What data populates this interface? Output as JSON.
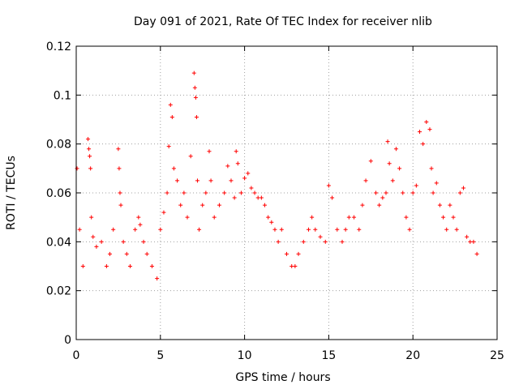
{
  "chart_data": {
    "type": "scatter",
    "title": "Day 091 of 2021, Rate Of TEC Index for receiver nlib",
    "xlabel": "GPS time / hours",
    "ylabel": "ROTI / TECUs",
    "xlim": [
      0,
      25
    ],
    "ylim": [
      0,
      0.12
    ],
    "x_ticks": [
      0,
      5,
      10,
      15,
      20,
      25
    ],
    "x_tick_labels": [
      "0",
      "5",
      "10",
      "15",
      "20",
      "25"
    ],
    "y_ticks": [
      0,
      0.02,
      0.04,
      0.06,
      0.08,
      0.1,
      0.12
    ],
    "y_tick_labels": [
      "0",
      "0.02",
      "0.04",
      "0.06",
      "0.08",
      "0.1",
      "0.12"
    ],
    "grid": true,
    "marker": "plus",
    "color": "#ff0000",
    "series": [
      {
        "x": [
          0.05,
          0.2,
          0.4,
          0.7,
          0.75,
          0.8,
          0.85,
          0.9,
          1.0,
          1.2,
          1.5,
          1.8,
          2.0,
          2.2,
          2.5,
          2.55,
          2.6,
          2.65,
          2.8,
          3.0,
          3.2,
          3.5,
          3.7,
          3.8,
          4.0,
          4.2,
          4.5,
          4.8,
          5.0,
          5.2,
          5.4,
          5.5,
          5.6,
          5.7,
          5.8,
          6.0,
          6.2,
          6.4,
          6.6,
          6.8,
          7.0,
          7.05,
          7.1,
          7.15,
          7.2,
          7.3,
          7.5,
          7.7,
          7.9,
          8.0,
          8.2,
          8.5,
          8.8,
          9.0,
          9.2,
          9.4,
          9.5,
          9.6,
          9.8,
          10.0,
          10.2,
          10.4,
          10.6,
          10.8,
          11.0,
          11.2,
          11.4,
          11.6,
          11.8,
          12.0,
          12.2,
          12.5,
          12.8,
          13.0,
          13.2,
          13.5,
          13.8,
          14.0,
          14.2,
          14.5,
          14.8,
          15.0,
          15.2,
          15.5,
          15.8,
          16.0,
          16.2,
          16.5,
          16.8,
          17.0,
          17.2,
          17.5,
          17.8,
          18.0,
          18.2,
          18.4,
          18.5,
          18.6,
          18.8,
          19.0,
          19.2,
          19.4,
          19.6,
          19.8,
          20.0,
          20.2,
          20.4,
          20.6,
          20.8,
          21.0,
          21.1,
          21.2,
          21.4,
          21.6,
          21.8,
          22.0,
          22.2,
          22.4,
          22.6,
          22.8,
          23.0,
          23.2,
          23.4,
          23.6,
          23.8
        ],
        "y": [
          0.07,
          0.045,
          0.03,
          0.082,
          0.078,
          0.075,
          0.07,
          0.05,
          0.042,
          0.038,
          0.04,
          0.03,
          0.035,
          0.045,
          0.078,
          0.07,
          0.06,
          0.055,
          0.04,
          0.035,
          0.03,
          0.045,
          0.05,
          0.047,
          0.04,
          0.035,
          0.03,
          0.025,
          0.045,
          0.052,
          0.06,
          0.079,
          0.096,
          0.091,
          0.07,
          0.065,
          0.055,
          0.06,
          0.05,
          0.075,
          0.109,
          0.103,
          0.099,
          0.091,
          0.065,
          0.045,
          0.055,
          0.06,
          0.077,
          0.065,
          0.05,
          0.055,
          0.06,
          0.071,
          0.065,
          0.058,
          0.077,
          0.072,
          0.06,
          0.066,
          0.068,
          0.062,
          0.06,
          0.058,
          0.058,
          0.055,
          0.05,
          0.048,
          0.045,
          0.04,
          0.045,
          0.035,
          0.03,
          0.03,
          0.035,
          0.04,
          0.045,
          0.05,
          0.045,
          0.042,
          0.04,
          0.063,
          0.058,
          0.045,
          0.04,
          0.045,
          0.05,
          0.05,
          0.045,
          0.055,
          0.065,
          0.073,
          0.06,
          0.055,
          0.058,
          0.06,
          0.081,
          0.072,
          0.065,
          0.078,
          0.07,
          0.06,
          0.05,
          0.045,
          0.06,
          0.063,
          0.085,
          0.08,
          0.089,
          0.086,
          0.07,
          0.06,
          0.064,
          0.055,
          0.05,
          0.045,
          0.055,
          0.05,
          0.045,
          0.06,
          0.062,
          0.042,
          0.04,
          0.04,
          0.035
        ]
      }
    ]
  }
}
